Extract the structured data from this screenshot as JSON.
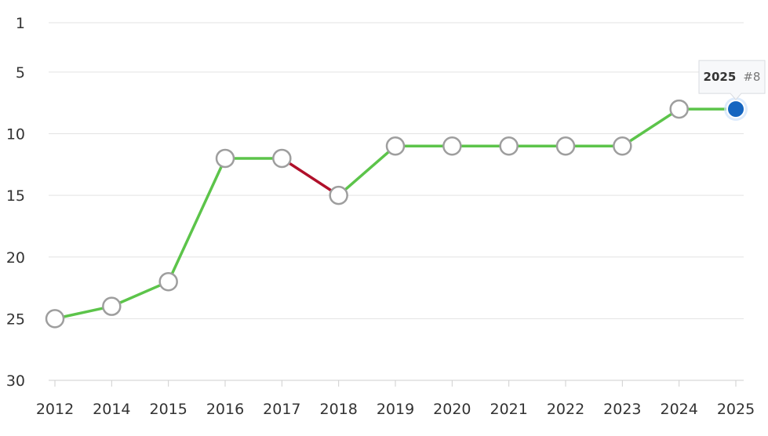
{
  "chart_data": {
    "type": "line",
    "y_inverted": true,
    "ylim": [
      1,
      30
    ],
    "y_ticks": [
      1,
      5,
      10,
      15,
      20,
      25,
      30
    ],
    "categories": [
      "2012",
      "2014",
      "2015",
      "2016",
      "2017",
      "2018",
      "2019",
      "2020",
      "2021",
      "2022",
      "2023",
      "2024",
      "2025"
    ],
    "values": [
      25,
      24,
      22,
      12,
      12,
      15,
      11,
      11,
      11,
      11,
      11,
      8,
      8
    ],
    "grid": true,
    "colors": {
      "improve": "#5cc44a",
      "decline": "#b0102a",
      "point_fill": "#ffffff",
      "point_stroke": "#9e9e9e",
      "highlight_fill": "#1565c0",
      "highlight_halo": "#cfe3fb"
    },
    "tooltip": {
      "year": "2025",
      "rank": "#8"
    }
  }
}
